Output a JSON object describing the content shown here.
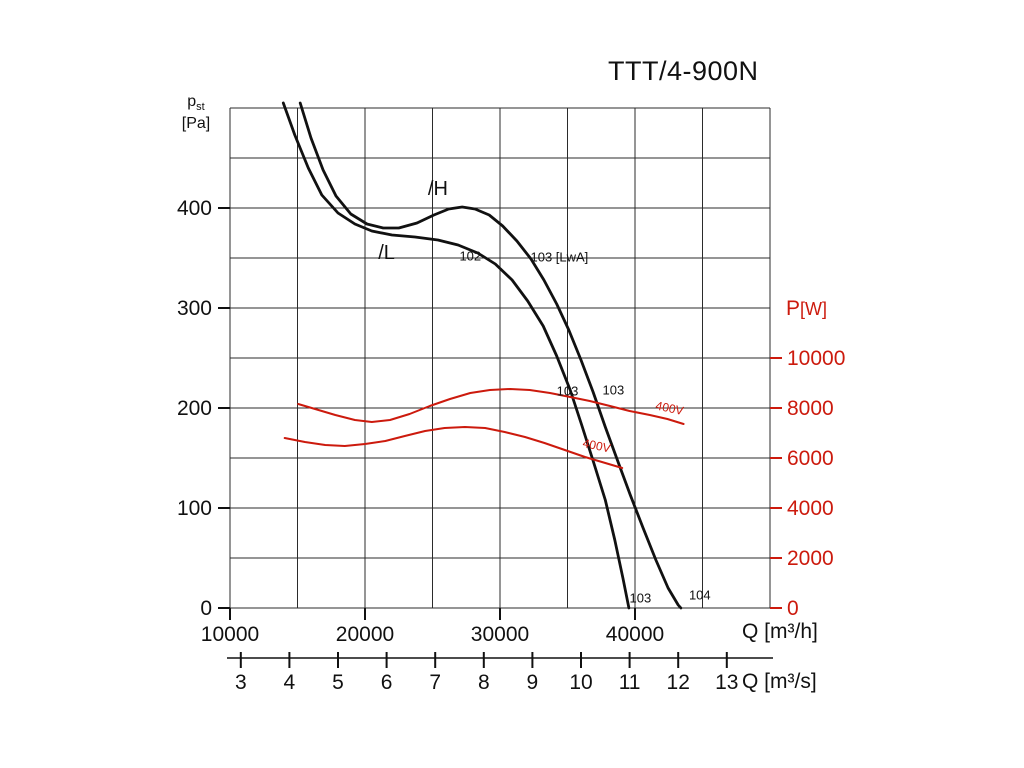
{
  "page": {
    "title": "TTT/4-900N"
  },
  "axes_labels": {
    "pressure_main": "p",
    "pressure_sub": "st",
    "pressure_unit": "[Pa]",
    "power_main": "P",
    "power_unit": "[W]"
  },
  "chart_data": {
    "type": "line",
    "title": "TTT/4-900N",
    "grid": true,
    "x_axis": {
      "label": "Q [m³/h]",
      "range": [
        10000,
        50000
      ],
      "grid_step": 5000,
      "ticks": [
        10000,
        20000,
        30000,
        40000
      ]
    },
    "x_axis_secondary": {
      "label": "Q [m³/s]",
      "ticks": [
        3,
        4,
        5,
        6,
        7,
        8,
        9,
        10,
        11,
        12,
        13
      ],
      "factor_to_m3h": 3600
    },
    "y_axis_pressure": {
      "label": "pst [Pa]",
      "range": [
        0,
        500
      ],
      "grid_step": 50,
      "ticks": [
        0,
        100,
        200,
        300,
        400
      ]
    },
    "y_axis_power": {
      "label": "P [W]",
      "range": [
        0,
        20000
      ],
      "ticks": [
        0,
        2000,
        4000,
        6000,
        8000,
        10000
      ]
    },
    "series": [
      {
        "name": "H-pressure",
        "label": "/H",
        "axis": "pressure",
        "color": "#111111",
        "width": 2.8,
        "points": [
          [
            15200,
            505
          ],
          [
            16000,
            470
          ],
          [
            16900,
            438
          ],
          [
            17850,
            412
          ],
          [
            18950,
            394
          ],
          [
            20150,
            384
          ],
          [
            21350,
            380
          ],
          [
            22500,
            380
          ],
          [
            23850,
            385
          ],
          [
            25100,
            393
          ],
          [
            26200,
            399
          ],
          [
            27200,
            401
          ],
          [
            28150,
            399
          ],
          [
            29200,
            393
          ],
          [
            30200,
            382
          ],
          [
            31250,
            367
          ],
          [
            32300,
            349
          ],
          [
            33250,
            328
          ],
          [
            34200,
            304
          ],
          [
            35100,
            278
          ],
          [
            36000,
            248
          ],
          [
            36900,
            216
          ],
          [
            37800,
            181
          ],
          [
            38750,
            146
          ],
          [
            39650,
            113
          ],
          [
            40600,
            80
          ],
          [
            41550,
            48
          ],
          [
            42450,
            20
          ],
          [
            43200,
            3
          ],
          [
            43400,
            0
          ]
        ]
      },
      {
        "name": "L-pressure",
        "label": "/L",
        "axis": "pressure",
        "color": "#111111",
        "width": 2.8,
        "points": [
          [
            13950,
            505
          ],
          [
            14800,
            473
          ],
          [
            15800,
            440
          ],
          [
            16800,
            413
          ],
          [
            18000,
            395
          ],
          [
            19250,
            384
          ],
          [
            20500,
            377
          ],
          [
            22000,
            373
          ],
          [
            23700,
            371
          ],
          [
            25400,
            368
          ],
          [
            26900,
            363
          ],
          [
            28350,
            355
          ],
          [
            29650,
            344
          ],
          [
            30900,
            328
          ],
          [
            32050,
            307
          ],
          [
            33200,
            282
          ],
          [
            34200,
            252
          ],
          [
            35200,
            218
          ],
          [
            36050,
            183
          ],
          [
            36950,
            145
          ],
          [
            37800,
            108
          ],
          [
            38500,
            68
          ],
          [
            39100,
            30
          ],
          [
            39550,
            0
          ]
        ]
      },
      {
        "name": "H-power-400V",
        "label": "400V",
        "axis": "power",
        "color": "#cc1a0d",
        "width": 2,
        "points": [
          [
            15050,
            8160
          ],
          [
            16300,
            7960
          ],
          [
            17800,
            7720
          ],
          [
            19250,
            7520
          ],
          [
            20500,
            7440
          ],
          [
            21850,
            7520
          ],
          [
            23300,
            7760
          ],
          [
            24800,
            8080
          ],
          [
            26300,
            8360
          ],
          [
            27800,
            8600
          ],
          [
            29250,
            8720
          ],
          [
            30750,
            8760
          ],
          [
            32200,
            8720
          ],
          [
            33700,
            8600
          ],
          [
            35200,
            8440
          ],
          [
            36650,
            8280
          ],
          [
            38150,
            8080
          ],
          [
            39600,
            7880
          ],
          [
            41100,
            7720
          ],
          [
            42400,
            7560
          ],
          [
            43600,
            7360
          ]
        ]
      },
      {
        "name": "L-power-400V",
        "label": "400V",
        "axis": "power",
        "color": "#cc1a0d",
        "width": 2,
        "points": [
          [
            14050,
            6800
          ],
          [
            15550,
            6640
          ],
          [
            17050,
            6520
          ],
          [
            18500,
            6480
          ],
          [
            20000,
            6560
          ],
          [
            21500,
            6680
          ],
          [
            22950,
            6880
          ],
          [
            24450,
            7080
          ],
          [
            25900,
            7200
          ],
          [
            27400,
            7240
          ],
          [
            28900,
            7200
          ],
          [
            30350,
            7040
          ],
          [
            31850,
            6840
          ],
          [
            33300,
            6600
          ],
          [
            34800,
            6320
          ],
          [
            36300,
            6040
          ],
          [
            37800,
            5800
          ],
          [
            39050,
            5600
          ]
        ]
      }
    ],
    "annotations": [
      {
        "text": "/H",
        "x": 25400,
        "y": 420,
        "axis": "pressure",
        "color": "#111111",
        "size": 20
      },
      {
        "text": "/L",
        "x": 21600,
        "y": 356,
        "axis": "pressure",
        "color": "#111111",
        "size": 20
      },
      {
        "text": "102",
        "x": 27800,
        "y": 352,
        "axis": "pressure",
        "color": "#111111",
        "size": 13
      },
      {
        "text": "103 [LwA]",
        "x": 34400,
        "y": 351,
        "axis": "pressure",
        "color": "#111111",
        "size": 13
      },
      {
        "text": "103",
        "x": 35000,
        "y": 217,
        "axis": "pressure",
        "color": "#111111",
        "size": 13
      },
      {
        "text": "103",
        "x": 38400,
        "y": 218,
        "axis": "pressure",
        "color": "#111111",
        "size": 13
      },
      {
        "text": "103",
        "x": 40400,
        "y": 10,
        "axis": "pressure",
        "color": "#111111",
        "size": 13
      },
      {
        "text": "104",
        "x": 44800,
        "y": 13,
        "axis": "pressure",
        "color": "#111111",
        "size": 13
      },
      {
        "text": "400V",
        "x": 42500,
        "y": 8000,
        "axis": "power",
        "color": "#cc1a0d",
        "size": 12,
        "rotate": 12
      },
      {
        "text": "400V",
        "x": 37100,
        "y": 6500,
        "axis": "power",
        "color": "#cc1a0d",
        "size": 12,
        "rotate": 12
      }
    ]
  }
}
